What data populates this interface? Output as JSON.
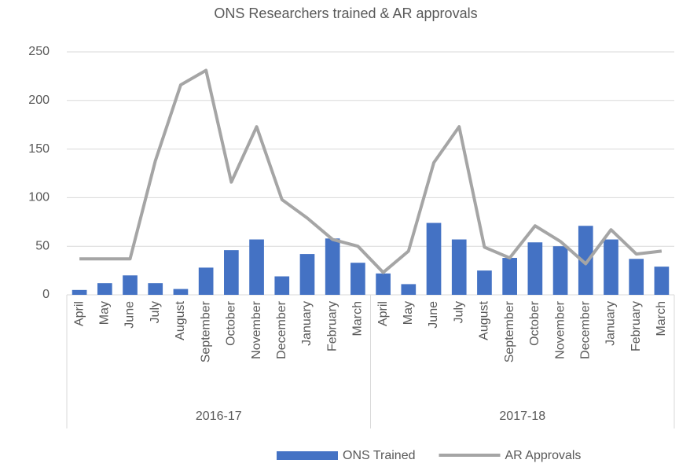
{
  "chart_data": {
    "type": "bar-line",
    "title": "ONS Researchers trained & AR approvals",
    "categories": [
      "April",
      "May",
      "June",
      "July",
      "August",
      "September",
      "October",
      "November",
      "December",
      "January",
      "February",
      "March",
      "April",
      "May",
      "June",
      "July",
      "August",
      "September",
      "October",
      "November",
      "December",
      "January",
      "February",
      "March"
    ],
    "groups": [
      "2016-17",
      "2017-18"
    ],
    "series": [
      {
        "name": "ONS Trained",
        "type": "bar",
        "color": "#4472c4",
        "values": [
          5,
          12,
          20,
          12,
          6,
          28,
          46,
          57,
          19,
          42,
          58,
          33,
          22,
          11,
          74,
          57,
          25,
          38,
          54,
          50,
          71,
          57,
          37,
          29
        ]
      },
      {
        "name": "AR Approvals",
        "type": "line",
        "color": "#a5a5a5",
        "values": [
          37,
          37,
          37,
          138,
          216,
          231,
          116,
          173,
          98,
          79,
          57,
          50,
          23,
          45,
          136,
          173,
          49,
          38,
          71,
          55,
          32,
          67,
          42,
          45
        ]
      }
    ],
    "ylim": [
      0,
      250
    ],
    "yticks": [
      0,
      50,
      100,
      150,
      200,
      250
    ],
    "grid": true,
    "legend": "bottom"
  }
}
